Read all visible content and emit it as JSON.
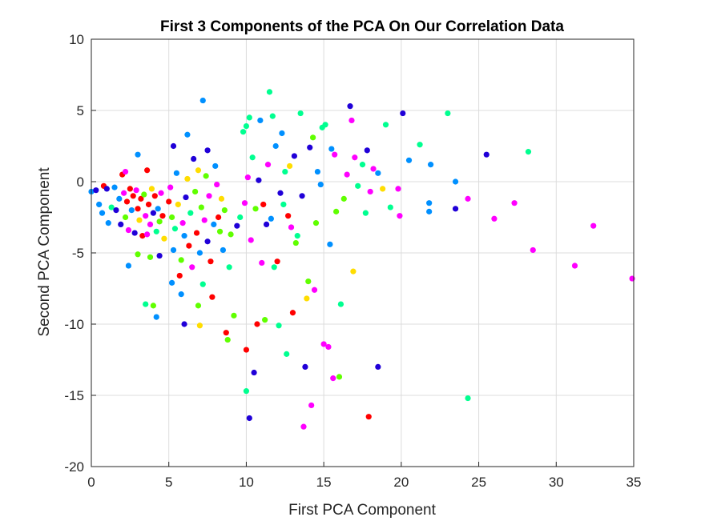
{
  "chart_data": {
    "type": "scatter",
    "title": "First 3 Components of the PCA On Our Correlation Data",
    "xlabel": "First PCA Component",
    "ylabel": "Second PCA Component",
    "xlim": [
      0,
      35
    ],
    "ylim": [
      -20,
      10
    ],
    "xticks": [
      "0",
      "5",
      "10",
      "15",
      "20",
      "25",
      "30",
      "35"
    ],
    "yticks": [
      "10",
      "5",
      "0",
      "-5",
      "-10",
      "-15",
      "-20"
    ],
    "grid": true,
    "legend": "none",
    "colors": [
      "#2000d8",
      "#0090ff",
      "#00ff90",
      "#60ff00",
      "#ffdd00",
      "#ff0000",
      "#ff00ff"
    ],
    "points": [
      {
        "x": 0.0,
        "y": -0.7,
        "c": 1
      },
      {
        "x": 0.3,
        "y": -0.6,
        "c": 0
      },
      {
        "x": 0.5,
        "y": -1.6,
        "c": 1
      },
      {
        "x": 0.7,
        "y": -2.2,
        "c": 1
      },
      {
        "x": 0.8,
        "y": -0.3,
        "c": 5
      },
      {
        "x": 1.0,
        "y": -0.5,
        "c": 0
      },
      {
        "x": 1.1,
        "y": -2.9,
        "c": 1
      },
      {
        "x": 1.3,
        "y": -1.8,
        "c": 2
      },
      {
        "x": 1.5,
        "y": -0.4,
        "c": 1
      },
      {
        "x": 1.6,
        "y": -2.0,
        "c": 0
      },
      {
        "x": 1.8,
        "y": -1.2,
        "c": 1
      },
      {
        "x": 1.9,
        "y": -3.0,
        "c": 0
      },
      {
        "x": 2.0,
        "y": 0.5,
        "c": 5
      },
      {
        "x": 2.1,
        "y": -0.8,
        "c": 6
      },
      {
        "x": 2.2,
        "y": -2.5,
        "c": 3
      },
      {
        "x": 2.3,
        "y": -1.4,
        "c": 5
      },
      {
        "x": 2.4,
        "y": -3.4,
        "c": 6
      },
      {
        "x": 2.5,
        "y": -0.5,
        "c": 5
      },
      {
        "x": 2.6,
        "y": -2.0,
        "c": 1
      },
      {
        "x": 2.7,
        "y": -1.0,
        "c": 5
      },
      {
        "x": 2.8,
        "y": -3.6,
        "c": 0
      },
      {
        "x": 2.9,
        "y": -0.6,
        "c": 6
      },
      {
        "x": 3.0,
        "y": -1.9,
        "c": 5
      },
      {
        "x": 3.1,
        "y": -2.7,
        "c": 4
      },
      {
        "x": 3.2,
        "y": -1.2,
        "c": 5
      },
      {
        "x": 3.3,
        "y": -3.8,
        "c": 5
      },
      {
        "x": 3.4,
        "y": -0.9,
        "c": 3
      },
      {
        "x": 3.5,
        "y": -2.4,
        "c": 6
      },
      {
        "x": 3.6,
        "y": 0.8,
        "c": 5
      },
      {
        "x": 3.7,
        "y": -1.6,
        "c": 5
      },
      {
        "x": 3.8,
        "y": -3.0,
        "c": 6
      },
      {
        "x": 3.9,
        "y": -0.5,
        "c": 4
      },
      {
        "x": 4.0,
        "y": -2.2,
        "c": 0
      },
      {
        "x": 4.1,
        "y": -1.0,
        "c": 5
      },
      {
        "x": 4.2,
        "y": -3.5,
        "c": 2
      },
      {
        "x": 4.3,
        "y": -1.9,
        "c": 1
      },
      {
        "x": 4.4,
        "y": -2.8,
        "c": 3
      },
      {
        "x": 4.5,
        "y": -0.8,
        "c": 6
      },
      {
        "x": 4.6,
        "y": -2.4,
        "c": 5
      },
      {
        "x": 4.7,
        "y": -4.0,
        "c": 4
      },
      {
        "x": 2.4,
        "y": -5.9,
        "c": 1
      },
      {
        "x": 2.2,
        "y": 0.7,
        "c": 6
      },
      {
        "x": 3.0,
        "y": 1.9,
        "c": 1
      },
      {
        "x": 3.5,
        "y": -8.6,
        "c": 2
      },
      {
        "x": 4.0,
        "y": -8.7,
        "c": 3
      },
      {
        "x": 4.2,
        "y": -9.5,
        "c": 1
      },
      {
        "x": 3.0,
        "y": -5.1,
        "c": 3
      },
      {
        "x": 3.8,
        "y": -5.3,
        "c": 3
      },
      {
        "x": 4.4,
        "y": -5.2,
        "c": 0
      },
      {
        "x": 3.6,
        "y": -3.7,
        "c": 6
      },
      {
        "x": 5.0,
        "y": -1.4,
        "c": 5
      },
      {
        "x": 5.1,
        "y": -0.4,
        "c": 6
      },
      {
        "x": 5.2,
        "y": -2.5,
        "c": 3
      },
      {
        "x": 5.3,
        "y": -4.8,
        "c": 1
      },
      {
        "x": 5.4,
        "y": -3.3,
        "c": 2
      },
      {
        "x": 5.5,
        "y": 0.6,
        "c": 1
      },
      {
        "x": 5.6,
        "y": -1.6,
        "c": 4
      },
      {
        "x": 5.7,
        "y": -6.6,
        "c": 5
      },
      {
        "x": 5.8,
        "y": -5.5,
        "c": 3
      },
      {
        "x": 5.9,
        "y": -2.9,
        "c": 6
      },
      {
        "x": 6.0,
        "y": -3.8,
        "c": 1
      },
      {
        "x": 6.1,
        "y": -1.1,
        "c": 0
      },
      {
        "x": 6.2,
        "y": 0.2,
        "c": 4
      },
      {
        "x": 6.3,
        "y": -4.5,
        "c": 5
      },
      {
        "x": 6.4,
        "y": -2.2,
        "c": 2
      },
      {
        "x": 6.5,
        "y": -6.0,
        "c": 6
      },
      {
        "x": 6.6,
        "y": 1.6,
        "c": 0
      },
      {
        "x": 6.7,
        "y": -0.7,
        "c": 3
      },
      {
        "x": 6.8,
        "y": -3.6,
        "c": 5
      },
      {
        "x": 6.9,
        "y": 0.8,
        "c": 4
      },
      {
        "x": 7.0,
        "y": -5.0,
        "c": 1
      },
      {
        "x": 7.1,
        "y": -1.8,
        "c": 3
      },
      {
        "x": 7.2,
        "y": -7.2,
        "c": 2
      },
      {
        "x": 7.3,
        "y": -2.7,
        "c": 6
      },
      {
        "x": 7.4,
        "y": 0.4,
        "c": 3
      },
      {
        "x": 7.5,
        "y": -4.2,
        "c": 0
      },
      {
        "x": 7.6,
        "y": -1.0,
        "c": 6
      },
      {
        "x": 7.7,
        "y": -5.6,
        "c": 5
      },
      {
        "x": 7.8,
        "y": -8.1,
        "c": 5
      },
      {
        "x": 7.9,
        "y": -3.0,
        "c": 1
      },
      {
        "x": 5.2,
        "y": -7.1,
        "c": 1
      },
      {
        "x": 5.8,
        "y": -7.9,
        "c": 1
      },
      {
        "x": 6.0,
        "y": -10.0,
        "c": 0
      },
      {
        "x": 7.0,
        "y": -10.1,
        "c": 4
      },
      {
        "x": 6.9,
        "y": -8.7,
        "c": 3
      },
      {
        "x": 7.2,
        "y": 5.7,
        "c": 1
      },
      {
        "x": 6.2,
        "y": 3.3,
        "c": 1
      },
      {
        "x": 5.3,
        "y": 2.5,
        "c": 0
      },
      {
        "x": 7.5,
        "y": 2.2,
        "c": 0
      },
      {
        "x": 8.0,
        "y": 1.1,
        "c": 1
      },
      {
        "x": 8.1,
        "y": -0.2,
        "c": 6
      },
      {
        "x": 8.2,
        "y": -2.5,
        "c": 5
      },
      {
        "x": 8.3,
        "y": -3.5,
        "c": 3
      },
      {
        "x": 8.4,
        "y": -1.2,
        "c": 4
      },
      {
        "x": 8.5,
        "y": -4.8,
        "c": 1
      },
      {
        "x": 8.6,
        "y": -2.0,
        "c": 3
      },
      {
        "x": 8.7,
        "y": -10.6,
        "c": 5
      },
      {
        "x": 8.8,
        "y": -11.1,
        "c": 3
      },
      {
        "x": 8.9,
        "y": -6.0,
        "c": 2
      },
      {
        "x": 9.0,
        "y": -3.7,
        "c": 3
      },
      {
        "x": 9.2,
        "y": -9.4,
        "c": 3
      },
      {
        "x": 9.4,
        "y": -3.1,
        "c": 0
      },
      {
        "x": 9.6,
        "y": -2.5,
        "c": 2
      },
      {
        "x": 9.8,
        "y": 3.5,
        "c": 2
      },
      {
        "x": 9.9,
        "y": -1.5,
        "c": 6
      },
      {
        "x": 10.0,
        "y": 3.9,
        "c": 2
      },
      {
        "x": 10.0,
        "y": -11.8,
        "c": 5
      },
      {
        "x": 10.0,
        "y": -14.7,
        "c": 2
      },
      {
        "x": 10.1,
        "y": 0.3,
        "c": 6
      },
      {
        "x": 10.2,
        "y": 4.5,
        "c": 2
      },
      {
        "x": 10.2,
        "y": -16.6,
        "c": 0
      },
      {
        "x": 10.3,
        "y": -4.1,
        "c": 6
      },
      {
        "x": 10.4,
        "y": 1.7,
        "c": 2
      },
      {
        "x": 10.5,
        "y": -13.4,
        "c": 0
      },
      {
        "x": 10.6,
        "y": -1.9,
        "c": 3
      },
      {
        "x": 10.7,
        "y": -10.0,
        "c": 5
      },
      {
        "x": 10.8,
        "y": 0.1,
        "c": 0
      },
      {
        "x": 10.9,
        "y": 4.3,
        "c": 1
      },
      {
        "x": 11.0,
        "y": -5.7,
        "c": 6
      },
      {
        "x": 11.1,
        "y": -1.6,
        "c": 5
      },
      {
        "x": 11.2,
        "y": -9.7,
        "c": 3
      },
      {
        "x": 11.3,
        "y": -3.0,
        "c": 0
      },
      {
        "x": 11.4,
        "y": 1.2,
        "c": 6
      },
      {
        "x": 11.5,
        "y": 6.3,
        "c": 2
      },
      {
        "x": 11.6,
        "y": -2.6,
        "c": 1
      },
      {
        "x": 11.7,
        "y": 4.6,
        "c": 2
      },
      {
        "x": 11.8,
        "y": -6.0,
        "c": 2
      },
      {
        "x": 11.9,
        "y": 2.5,
        "c": 1
      },
      {
        "x": 12.0,
        "y": -5.6,
        "c": 5
      },
      {
        "x": 12.1,
        "y": -10.1,
        "c": 2
      },
      {
        "x": 12.2,
        "y": -0.8,
        "c": 0
      },
      {
        "x": 12.3,
        "y": 3.4,
        "c": 1
      },
      {
        "x": 12.4,
        "y": -1.6,
        "c": 2
      },
      {
        "x": 12.5,
        "y": 0.7,
        "c": 2
      },
      {
        "x": 12.6,
        "y": -12.1,
        "c": 2
      },
      {
        "x": 12.7,
        "y": -2.4,
        "c": 5
      },
      {
        "x": 12.8,
        "y": 1.1,
        "c": 4
      },
      {
        "x": 12.9,
        "y": -3.2,
        "c": 6
      },
      {
        "x": 13.0,
        "y": -9.2,
        "c": 5
      },
      {
        "x": 13.1,
        "y": 1.8,
        "c": 0
      },
      {
        "x": 13.2,
        "y": -4.3,
        "c": 3
      },
      {
        "x": 13.3,
        "y": -3.8,
        "c": 2
      },
      {
        "x": 13.5,
        "y": 4.8,
        "c": 2
      },
      {
        "x": 13.6,
        "y": -1.0,
        "c": 0
      },
      {
        "x": 13.7,
        "y": -17.2,
        "c": 6
      },
      {
        "x": 13.8,
        "y": -13.0,
        "c": 0
      },
      {
        "x": 13.9,
        "y": -8.2,
        "c": 4
      },
      {
        "x": 14.0,
        "y": -7.0,
        "c": 3
      },
      {
        "x": 14.1,
        "y": 2.4,
        "c": 0
      },
      {
        "x": 14.2,
        "y": -15.7,
        "c": 6
      },
      {
        "x": 14.3,
        "y": 3.1,
        "c": 3
      },
      {
        "x": 14.4,
        "y": -7.6,
        "c": 6
      },
      {
        "x": 14.5,
        "y": -2.9,
        "c": 3
      },
      {
        "x": 14.6,
        "y": 0.7,
        "c": 1
      },
      {
        "x": 14.8,
        "y": -0.2,
        "c": 1
      },
      {
        "x": 14.9,
        "y": 3.8,
        "c": 2
      },
      {
        "x": 15.0,
        "y": -11.4,
        "c": 6
      },
      {
        "x": 15.1,
        "y": 4.0,
        "c": 2
      },
      {
        "x": 15.3,
        "y": -11.6,
        "c": 6
      },
      {
        "x": 15.4,
        "y": -4.4,
        "c": 1
      },
      {
        "x": 15.5,
        "y": 2.3,
        "c": 1
      },
      {
        "x": 15.6,
        "y": -13.8,
        "c": 6
      },
      {
        "x": 15.7,
        "y": 1.9,
        "c": 6
      },
      {
        "x": 15.8,
        "y": -2.1,
        "c": 3
      },
      {
        "x": 16.0,
        "y": -13.7,
        "c": 3
      },
      {
        "x": 16.1,
        "y": -8.6,
        "c": 2
      },
      {
        "x": 16.3,
        "y": -1.2,
        "c": 3
      },
      {
        "x": 16.5,
        "y": 0.5,
        "c": 6
      },
      {
        "x": 16.7,
        "y": 5.3,
        "c": 0
      },
      {
        "x": 16.8,
        "y": 4.3,
        "c": 6
      },
      {
        "x": 16.9,
        "y": -6.3,
        "c": 4
      },
      {
        "x": 17.0,
        "y": 1.7,
        "c": 6
      },
      {
        "x": 17.2,
        "y": -0.3,
        "c": 2
      },
      {
        "x": 17.5,
        "y": 1.2,
        "c": 2
      },
      {
        "x": 17.7,
        "y": -2.2,
        "c": 2
      },
      {
        "x": 17.8,
        "y": 2.2,
        "c": 0
      },
      {
        "x": 17.9,
        "y": -16.5,
        "c": 5
      },
      {
        "x": 18.0,
        "y": -0.7,
        "c": 6
      },
      {
        "x": 18.2,
        "y": 0.9,
        "c": 6
      },
      {
        "x": 18.5,
        "y": -13.0,
        "c": 0
      },
      {
        "x": 18.5,
        "y": 0.6,
        "c": 1
      },
      {
        "x": 18.8,
        "y": -0.5,
        "c": 4
      },
      {
        "x": 19.0,
        "y": 4.0,
        "c": 2
      },
      {
        "x": 19.3,
        "y": -1.8,
        "c": 2
      },
      {
        "x": 19.8,
        "y": -0.5,
        "c": 6
      },
      {
        "x": 19.9,
        "y": -2.4,
        "c": 6
      },
      {
        "x": 20.1,
        "y": 4.8,
        "c": 0
      },
      {
        "x": 20.5,
        "y": 1.5,
        "c": 1
      },
      {
        "x": 21.2,
        "y": 2.6,
        "c": 2
      },
      {
        "x": 21.8,
        "y": -1.5,
        "c": 1
      },
      {
        "x": 21.8,
        "y": -2.1,
        "c": 1
      },
      {
        "x": 21.9,
        "y": 1.2,
        "c": 1
      },
      {
        "x": 23.0,
        "y": 4.8,
        "c": 2
      },
      {
        "x": 23.5,
        "y": 0.0,
        "c": 1
      },
      {
        "x": 23.5,
        "y": -1.9,
        "c": 0
      },
      {
        "x": 24.3,
        "y": -1.2,
        "c": 6
      },
      {
        "x": 24.3,
        "y": -15.2,
        "c": 2
      },
      {
        "x": 25.5,
        "y": 1.9,
        "c": 0
      },
      {
        "x": 26.0,
        "y": -2.6,
        "c": 6
      },
      {
        "x": 27.3,
        "y": -1.5,
        "c": 6
      },
      {
        "x": 28.2,
        "y": 2.1,
        "c": 2
      },
      {
        "x": 28.5,
        "y": -4.8,
        "c": 6
      },
      {
        "x": 31.2,
        "y": -5.9,
        "c": 6
      },
      {
        "x": 32.4,
        "y": -3.1,
        "c": 6
      },
      {
        "x": 34.9,
        "y": -6.8,
        "c": 6
      }
    ]
  }
}
